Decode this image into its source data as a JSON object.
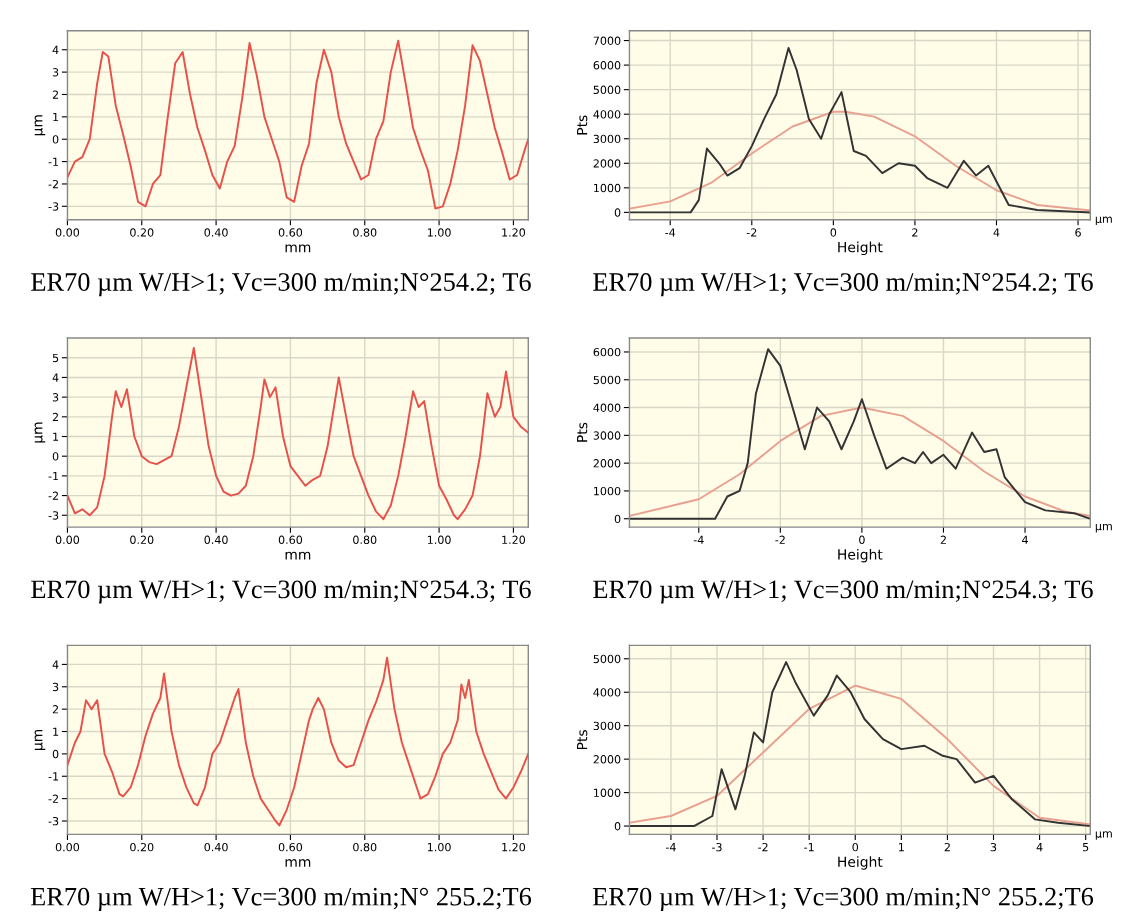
{
  "chart_data": [
    {
      "type": "line",
      "title": "ER70 µm W/H>1; Vc=300 m/min;N°254.2; T6",
      "xlabel": "mm",
      "ylabel": "µm",
      "grid": true,
      "xlim": [
        0,
        1.24
      ],
      "ylim": [
        -3.6,
        4.85
      ],
      "xticks": [
        {
          "value": 0,
          "label": "0.00"
        },
        {
          "value": 0.2,
          "label": "0.20"
        },
        {
          "value": 0.4,
          "label": "0.40"
        },
        {
          "value": 0.6,
          "label": "0.60"
        },
        {
          "value": 0.8,
          "label": "0.80"
        },
        {
          "value": 1.0,
          "label": "1.00"
        },
        {
          "value": 1.2,
          "label": "1.20"
        }
      ],
      "yticks": [
        -3,
        -2,
        -1,
        0,
        1,
        2,
        3,
        4
      ],
      "series": [
        {
          "color": "#e8504a",
          "x": [
            0,
            0.02,
            0.04,
            0.06,
            0.08,
            0.095,
            0.11,
            0.13,
            0.15,
            0.17,
            0.19,
            0.21,
            0.23,
            0.25,
            0.27,
            0.29,
            0.31,
            0.33,
            0.35,
            0.37,
            0.39,
            0.41,
            0.43,
            0.45,
            0.47,
            0.49,
            0.51,
            0.53,
            0.55,
            0.57,
            0.59,
            0.61,
            0.63,
            0.65,
            0.67,
            0.69,
            0.71,
            0.73,
            0.75,
            0.77,
            0.79,
            0.81,
            0.83,
            0.85,
            0.87,
            0.89,
            0.91,
            0.93,
            0.95,
            0.97,
            0.99,
            1.01,
            1.03,
            1.05,
            1.07,
            1.09,
            1.11,
            1.13,
            1.15,
            1.17,
            1.19,
            1.21,
            1.23,
            1.24
          ],
          "values": [
            -1.7,
            -1.0,
            -0.8,
            0.0,
            2.5,
            3.9,
            3.7,
            1.5,
            0.2,
            -1.2,
            -2.8,
            -3.0,
            -2.0,
            -1.6,
            1.0,
            3.4,
            3.9,
            2.0,
            0.5,
            -0.5,
            -1.6,
            -2.2,
            -1.0,
            -0.3,
            1.8,
            4.3,
            2.8,
            1.0,
            0.0,
            -1.0,
            -2.6,
            -2.8,
            -1.2,
            -0.2,
            2.5,
            4.0,
            3.0,
            1.0,
            -0.2,
            -1.0,
            -1.8,
            -1.6,
            0.0,
            0.8,
            3.0,
            4.4,
            2.5,
            0.5,
            -0.5,
            -1.4,
            -3.1,
            -3.0,
            -2.0,
            -0.5,
            1.5,
            4.2,
            3.5,
            2.0,
            0.5,
            -0.6,
            -1.8,
            -1.6,
            -0.5,
            0.0
          ]
        }
      ]
    },
    {
      "type": "line",
      "title": "ER70 µm W/H>1; Vc=300 m/min;N°254.2; T6",
      "xlabel": "Height",
      "ylabel": "Pts",
      "annotations": [
        "µm"
      ],
      "grid": true,
      "xlim": [
        -5.0,
        6.3
      ],
      "ylim": [
        -300,
        7400
      ],
      "xticks": [
        -4,
        -2,
        0,
        2,
        4,
        6
      ],
      "yticks": [
        0,
        1000,
        2000,
        3000,
        4000,
        5000,
        6000,
        7000
      ],
      "series": [
        {
          "color": "#e8a090",
          "x": [
            -5,
            -4,
            -3,
            -2,
            -1,
            0,
            0.3,
            1,
            2,
            3,
            4,
            5,
            6.3
          ],
          "values": [
            150,
            450,
            1200,
            2400,
            3500,
            4100,
            4100,
            3900,
            3100,
            1900,
            900,
            300,
            80
          ]
        },
        {
          "color": "#333333",
          "x": [
            -5,
            -3.5,
            -3.3,
            -3.1,
            -2.8,
            -2.6,
            -2.3,
            -2,
            -1.7,
            -1.4,
            -1.1,
            -0.9,
            -0.6,
            -0.3,
            -0.1,
            0.2,
            0.5,
            0.8,
            1.2,
            1.6,
            2,
            2.3,
            2.8,
            3.2,
            3.5,
            3.8,
            4.3,
            5,
            6.3
          ],
          "values": [
            0,
            0,
            500,
            2600,
            2000,
            1500,
            1800,
            2700,
            3800,
            4800,
            6700,
            5800,
            3800,
            3000,
            4000,
            4900,
            2500,
            2300,
            1600,
            2000,
            1900,
            1400,
            1000,
            2100,
            1500,
            1900,
            300,
            100,
            0
          ]
        }
      ]
    },
    {
      "type": "line",
      "title": "ER70 µm W/H>1; Vc=300 m/min;N°254.3; T6",
      "xlabel": "mm",
      "ylabel": "µm",
      "grid": true,
      "xlim": [
        0,
        1.24
      ],
      "ylim": [
        -3.6,
        6.0
      ],
      "xticks": [
        {
          "value": 0,
          "label": "0.00"
        },
        {
          "value": 0.2,
          "label": "0.20"
        },
        {
          "value": 0.4,
          "label": "0.40"
        },
        {
          "value": 0.6,
          "label": "0.60"
        },
        {
          "value": 0.8,
          "label": "0.80"
        },
        {
          "value": 1.0,
          "label": "1.00"
        },
        {
          "value": 1.2,
          "label": "1.20"
        }
      ],
      "yticks": [
        -3,
        -2,
        -1,
        0,
        1,
        2,
        3,
        4,
        5
      ],
      "series": [
        {
          "color": "#e8504a",
          "x": [
            0,
            0.02,
            0.04,
            0.06,
            0.08,
            0.1,
            0.12,
            0.13,
            0.145,
            0.16,
            0.18,
            0.2,
            0.22,
            0.24,
            0.26,
            0.28,
            0.3,
            0.32,
            0.34,
            0.36,
            0.38,
            0.4,
            0.42,
            0.44,
            0.46,
            0.48,
            0.5,
            0.52,
            0.53,
            0.545,
            0.56,
            0.58,
            0.6,
            0.62,
            0.64,
            0.66,
            0.68,
            0.7,
            0.73,
            0.75,
            0.77,
            0.79,
            0.81,
            0.83,
            0.85,
            0.87,
            0.89,
            0.91,
            0.93,
            0.945,
            0.96,
            0.98,
            1.0,
            1.02,
            1.04,
            1.05,
            1.07,
            1.09,
            1.11,
            1.13,
            1.15,
            1.165,
            1.18,
            1.2,
            1.22,
            1.24
          ],
          "values": [
            -2.0,
            -2.9,
            -2.7,
            -3.0,
            -2.6,
            -1.0,
            2.0,
            3.3,
            2.5,
            3.4,
            1.0,
            0.0,
            -0.3,
            -0.4,
            -0.2,
            0.0,
            1.5,
            3.5,
            5.5,
            3.0,
            0.5,
            -1.0,
            -1.8,
            -2.0,
            -1.9,
            -1.5,
            0.0,
            2.5,
            3.9,
            3.0,
            3.5,
            1.0,
            -0.5,
            -1.0,
            -1.5,
            -1.2,
            -1.0,
            0.5,
            4.0,
            2.0,
            0.0,
            -1.0,
            -2.0,
            -2.8,
            -3.2,
            -2.5,
            -1.0,
            1.0,
            3.3,
            2.5,
            2.8,
            0.5,
            -1.5,
            -2.2,
            -3.0,
            -3.2,
            -2.7,
            -2.0,
            0.0,
            3.2,
            2.0,
            2.5,
            4.3,
            2.0,
            1.5,
            1.2
          ]
        }
      ]
    },
    {
      "type": "line",
      "title": "ER70 µm W/H>1; Vc=300 m/min;N°254.3; T6",
      "xlabel": "Height",
      "ylabel": "Pts",
      "annotations": [
        "µm"
      ],
      "grid": true,
      "xlim": [
        -5.7,
        5.6
      ],
      "ylim": [
        -300,
        6500
      ],
      "xticks": [
        -4,
        -2,
        0,
        2,
        4
      ],
      "yticks": [
        0,
        1000,
        2000,
        3000,
        4000,
        5000,
        6000
      ],
      "series": [
        {
          "color": "#e8a090",
          "x": [
            -5.7,
            -4,
            -3,
            -2,
            -1,
            0,
            1,
            2,
            3,
            4,
            5,
            5.6
          ],
          "values": [
            100,
            700,
            1600,
            2800,
            3700,
            4000,
            3700,
            2800,
            1700,
            800,
            250,
            100
          ]
        },
        {
          "color": "#333333",
          "x": [
            -5.7,
            -3.6,
            -3.3,
            -3.0,
            -2.8,
            -2.6,
            -2.3,
            -2.0,
            -1.7,
            -1.4,
            -1.1,
            -0.8,
            -0.5,
            -0.2,
            0,
            0.3,
            0.6,
            1,
            1.3,
            1.5,
            1.7,
            2,
            2.3,
            2.7,
            3,
            3.3,
            3.5,
            4,
            4.5,
            5.2,
            5.6
          ],
          "values": [
            0,
            0,
            800,
            1000,
            2000,
            4500,
            6100,
            5500,
            4000,
            2500,
            4000,
            3500,
            2500,
            3500,
            4300,
            3000,
            1800,
            2200,
            2000,
            2400,
            2000,
            2300,
            1800,
            3100,
            2400,
            2500,
            1500,
            600,
            300,
            200,
            0
          ]
        }
      ]
    },
    {
      "type": "line",
      "title": "ER70 µm W/H>1; Vc=300 m/min;N° 255.2;T6",
      "xlabel": "mm",
      "ylabel": "µm",
      "grid": true,
      "xlim": [
        0,
        1.24
      ],
      "ylim": [
        -3.6,
        4.85
      ],
      "xticks": [
        {
          "value": 0,
          "label": "0.00"
        },
        {
          "value": 0.2,
          "label": "0.20"
        },
        {
          "value": 0.4,
          "label": "0.40"
        },
        {
          "value": 0.6,
          "label": "0.60"
        },
        {
          "value": 0.8,
          "label": "0.80"
        },
        {
          "value": 1.0,
          "label": "1.00"
        },
        {
          "value": 1.2,
          "label": "1.20"
        }
      ],
      "yticks": [
        -3,
        -2,
        -1,
        0,
        1,
        2,
        3,
        4
      ],
      "series": [
        {
          "color": "#e8504a",
          "x": [
            0,
            0.02,
            0.035,
            0.05,
            0.065,
            0.08,
            0.1,
            0.12,
            0.14,
            0.15,
            0.17,
            0.19,
            0.21,
            0.23,
            0.25,
            0.26,
            0.28,
            0.3,
            0.32,
            0.34,
            0.35,
            0.37,
            0.39,
            0.41,
            0.43,
            0.45,
            0.46,
            0.48,
            0.5,
            0.52,
            0.54,
            0.56,
            0.57,
            0.59,
            0.61,
            0.63,
            0.65,
            0.66,
            0.675,
            0.69,
            0.71,
            0.73,
            0.75,
            0.77,
            0.79,
            0.81,
            0.83,
            0.85,
            0.86,
            0.88,
            0.9,
            0.92,
            0.94,
            0.95,
            0.97,
            0.99,
            1.01,
            1.03,
            1.05,
            1.06,
            1.07,
            1.08,
            1.1,
            1.12,
            1.14,
            1.16,
            1.18,
            1.2,
            1.22,
            1.24
          ],
          "values": [
            -0.5,
            0.5,
            1.0,
            2.4,
            2.0,
            2.4,
            0.0,
            -0.8,
            -1.8,
            -1.9,
            -1.5,
            -0.5,
            0.8,
            1.8,
            2.5,
            3.6,
            1.0,
            -0.5,
            -1.5,
            -2.2,
            -2.3,
            -1.5,
            0.0,
            0.5,
            1.5,
            2.5,
            2.9,
            0.5,
            -1.0,
            -2.0,
            -2.5,
            -3.0,
            -3.2,
            -2.5,
            -1.5,
            0.0,
            1.5,
            2.0,
            2.5,
            2.0,
            0.5,
            -0.3,
            -0.6,
            -0.5,
            0.5,
            1.5,
            2.3,
            3.3,
            4.3,
            2.0,
            0.5,
            -0.5,
            -1.5,
            -2.0,
            -1.8,
            -1.0,
            0.0,
            0.5,
            1.5,
            3.1,
            2.5,
            3.3,
            1.0,
            0.0,
            -0.8,
            -1.6,
            -2.0,
            -1.5,
            -0.8,
            0.0
          ]
        }
      ]
    },
    {
      "type": "line",
      "title": "ER70 µm W/H>1; Vc=300 m/min;N° 255.2;T6",
      "xlabel": "Height",
      "ylabel": "Pts",
      "annotations": [
        "µm"
      ],
      "grid": true,
      "xlim": [
        -4.9,
        5.1
      ],
      "ylim": [
        -250,
        5400
      ],
      "xticks": [
        -4,
        -3,
        -2,
        -1,
        0,
        1,
        2,
        3,
        4,
        5
      ],
      "yticks": [
        0,
        1000,
        2000,
        3000,
        4000,
        5000
      ],
      "series": [
        {
          "color": "#e8a090",
          "x": [
            -4.9,
            -4,
            -3,
            -2,
            -1,
            0,
            1,
            2,
            3,
            4,
            5.1
          ],
          "values": [
            100,
            300,
            900,
            2200,
            3500,
            4200,
            3800,
            2600,
            1200,
            250,
            50
          ]
        },
        {
          "color": "#333333",
          "x": [
            -4.9,
            -3.5,
            -3.1,
            -2.9,
            -2.6,
            -2.4,
            -2.2,
            -2,
            -1.8,
            -1.5,
            -1.3,
            -0.9,
            -0.6,
            -0.4,
            -0.1,
            0.2,
            0.6,
            1,
            1.5,
            1.9,
            2.2,
            2.6,
            3,
            3.4,
            3.9,
            4.4,
            5.1
          ],
          "values": [
            0,
            0,
            300,
            1700,
            500,
            1500,
            2800,
            2500,
            4000,
            4900,
            4300,
            3300,
            3900,
            4500,
            4000,
            3200,
            2600,
            2300,
            2400,
            2100,
            2000,
            1300,
            1500,
            800,
            200,
            100,
            0
          ]
        }
      ]
    }
  ]
}
